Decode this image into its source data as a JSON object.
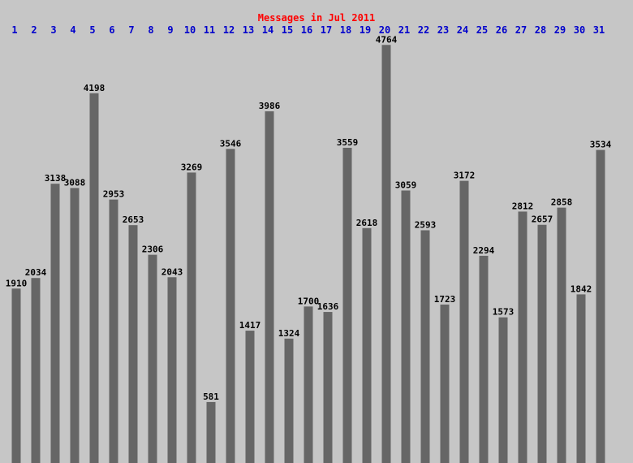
{
  "chart_data": {
    "type": "bar",
    "title": "Messages in Jul 2011",
    "categories": [
      "1",
      "2",
      "3",
      "4",
      "5",
      "6",
      "7",
      "8",
      "9",
      "10",
      "11",
      "12",
      "13",
      "14",
      "15",
      "16",
      "17",
      "18",
      "19",
      "20",
      "21",
      "22",
      "23",
      "24",
      "25",
      "26",
      "27",
      "28",
      "29",
      "30",
      "31"
    ],
    "values": [
      1910,
      2034,
      3138,
      3088,
      4198,
      2953,
      2653,
      2306,
      2043,
      3269,
      581,
      3546,
      1417,
      3986,
      1324,
      1700,
      1636,
      3559,
      2618,
      4764,
      3059,
      2593,
      1723,
      3172,
      2294,
      1573,
      2812,
      2657,
      2858,
      1842,
      3534
    ],
    "color": "#666666",
    "title_color": "#ff0000",
    "category_color": "#0000cc"
  }
}
